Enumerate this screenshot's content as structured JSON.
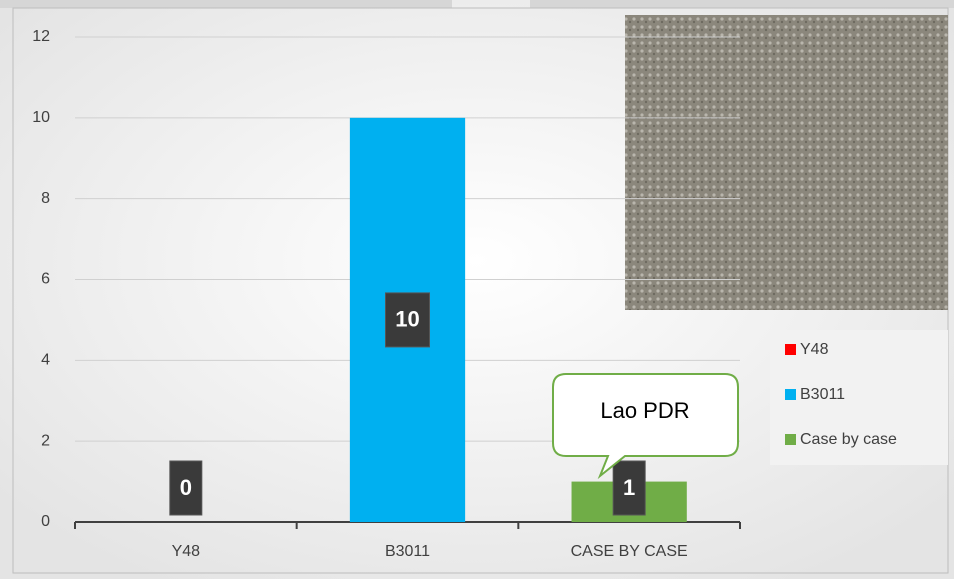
{
  "chart_data": {
    "type": "bar",
    "categories": [
      "Y48",
      "B3011",
      "CASE BY CASE"
    ],
    "values": [
      0,
      10,
      1
    ],
    "colors": [
      "#ff0000",
      "#00b0f0",
      "#70ad47"
    ],
    "legend": [
      "Y48",
      "B3011",
      "Case by case"
    ],
    "annotation": "Lao PDR",
    "ylim": [
      0,
      12
    ],
    "yticks": [
      0,
      2,
      4,
      6,
      8,
      10,
      12
    ],
    "grid": true
  }
}
